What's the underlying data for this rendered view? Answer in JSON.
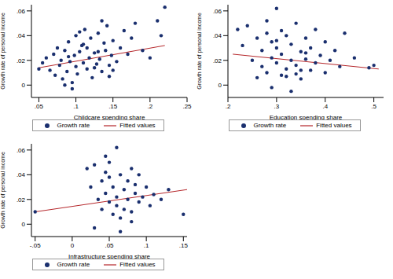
{
  "chart_data": [
    {
      "type": "scatter",
      "x_label": "Childcare spending share",
      "y_label": "Growth rate of personal income",
      "legend": "bottom",
      "xlim": [
        0.04,
        0.25
      ],
      "xticks": [
        {
          "value": 0.05,
          "label": ".05"
        },
        {
          "value": 0.1,
          "label": ".1"
        },
        {
          "value": 0.15,
          "label": ".15"
        },
        {
          "value": 0.2,
          "label": ".2"
        },
        {
          "value": 0.25,
          "label": ".25"
        }
      ],
      "ylim": [
        -0.01,
        0.065
      ],
      "yticks": [
        0,
        {
          "value": 0.02,
          "label": ".02"
        },
        {
          "value": 0.04,
          "label": ".04"
        },
        {
          "value": 0.06,
          "label": ".06"
        }
      ],
      "series": [
        {
          "name": "Growth rate",
          "type": "scatter",
          "marker": "circle",
          "color": "#1a2f6e",
          "x": [
            0.05,
            0.055,
            0.06,
            0.065,
            0.07,
            0.072,
            0.075,
            0.078,
            0.08,
            0.082,
            0.085,
            0.088,
            0.09,
            0.092,
            0.095,
            0.098,
            0.1,
            0.1,
            0.102,
            0.105,
            0.108,
            0.11,
            0.112,
            0.115,
            0.118,
            0.12,
            0.122,
            0.125,
            0.128,
            0.13,
            0.132,
            0.135,
            0.138,
            0.14,
            0.142,
            0.145,
            0.148,
            0.15,
            0.155,
            0.16,
            0.165,
            0.17,
            0.175,
            0.18,
            0.19,
            0.2,
            0.21,
            0.215,
            0.22,
            0.085,
            0.095,
            0.105,
            0.115,
            0.125,
            0.135,
            0.145,
            0.09,
            0.11,
            0.13,
            0.15
          ],
          "values": [
            0.013,
            0.018,
            0.022,
            0.012,
            0.025,
            0.008,
            0.03,
            0.016,
            0.02,
            0.005,
            0.028,
            0.011,
            0.035,
            0.019,
            0.002,
            0.024,
            0.015,
            0.04,
            0.009,
            0.027,
            0.032,
            0.018,
            0.045,
            0.013,
            0.022,
            0.038,
            0.006,
            0.026,
            0.017,
            0.042,
            0.021,
            0.011,
            0.034,
            0.028,
            0.048,
            0.016,
            0.024,
            0.036,
            0.019,
            0.03,
            0.044,
            0.025,
            0.038,
            0.05,
            0.028,
            0.022,
            0.052,
            0.04,
            0.063,
            0.0,
            -0.003,
            0.043,
            0.03,
            0.014,
            0.052,
            0.007,
            0.023,
            0.033,
            0.027,
            0.012
          ]
        },
        {
          "name": "Fitted values",
          "type": "line",
          "line_style": "solid",
          "color": "#b5262a",
          "x": [
            0.05,
            0.22
          ],
          "values": [
            0.014,
            0.032
          ]
        }
      ]
    },
    {
      "type": "scatter",
      "x_label": "Education spending share",
      "y_label": "Growth rate of personal income",
      "legend": "bottom",
      "xlim": [
        0.2,
        0.52
      ],
      "xticks": [
        {
          "value": 0.2,
          "label": ".2"
        },
        {
          "value": 0.3,
          "label": ".3"
        },
        {
          "value": 0.4,
          "label": ".4"
        },
        {
          "value": 0.5,
          "label": ".5"
        }
      ],
      "ylim": [
        -0.01,
        0.065
      ],
      "yticks": [
        0,
        {
          "value": 0.02,
          "label": ".02"
        },
        {
          "value": 0.04,
          "label": ".04"
        },
        {
          "value": 0.06,
          "label": ".06"
        }
      ],
      "series": [
        {
          "name": "Growth rate",
          "type": "scatter",
          "marker": "circle",
          "color": "#1a2f6e",
          "x": [
            0.22,
            0.23,
            0.24,
            0.25,
            0.26,
            0.27,
            0.27,
            0.28,
            0.28,
            0.29,
            0.29,
            0.3,
            0.3,
            0.3,
            0.31,
            0.31,
            0.32,
            0.32,
            0.33,
            0.33,
            0.34,
            0.34,
            0.35,
            0.35,
            0.36,
            0.36,
            0.37,
            0.37,
            0.38,
            0.38,
            0.39,
            0.4,
            0.4,
            0.41,
            0.42,
            0.43,
            0.44,
            0.46,
            0.49,
            0.5,
            0.26,
            0.29,
            0.31,
            0.33,
            0.35,
            0.28,
            0.32,
            0.36,
            0.3,
            0.34
          ],
          "values": [
            0.045,
            0.032,
            0.048,
            0.02,
            0.038,
            0.015,
            0.028,
            0.042,
            0.01,
            0.022,
            0.035,
            0.018,
            0.03,
            0.062,
            0.008,
            0.025,
            0.04,
            0.013,
            0.02,
            0.033,
            0.016,
            0.05,
            0.027,
            0.005,
            0.021,
            0.038,
            0.012,
            0.03,
            0.018,
            0.045,
            0.024,
            0.01,
            0.035,
            0.02,
            0.028,
            0.015,
            0.042,
            0.022,
            0.014,
            0.016,
            0.006,
            -0.002,
            0.044,
            -0.005,
            0.012,
            0.052,
            0.007,
            0.026,
            0.036,
            0.009
          ]
        },
        {
          "name": "Fitted values",
          "type": "line",
          "line_style": "solid",
          "color": "#b5262a",
          "x": [
            0.21,
            0.51
          ],
          "values": [
            0.025,
            0.013
          ]
        }
      ]
    },
    {
      "type": "scatter",
      "x_label": "Infrastructure spending share",
      "y_label": "Growth rate of personal income",
      "legend": "bottom",
      "xlim": [
        -0.055,
        0.155
      ],
      "xticks": [
        {
          "value": -0.05,
          "label": "-.05"
        },
        0,
        {
          "value": 0.05,
          "label": ".05"
        },
        {
          "value": 0.1,
          "label": ".1"
        },
        {
          "value": 0.15,
          "label": ".15"
        }
      ],
      "ylim": [
        -0.01,
        0.065
      ],
      "yticks": [
        0,
        {
          "value": 0.02,
          "label": ".02"
        },
        {
          "value": 0.04,
          "label": ".04"
        },
        {
          "value": 0.06,
          "label": ".06"
        }
      ],
      "series": [
        {
          "name": "Growth rate",
          "type": "scatter",
          "marker": "circle",
          "color": "#1a2f6e",
          "x": [
            -0.05,
            0.02,
            0.025,
            0.03,
            0.035,
            0.04,
            0.04,
            0.045,
            0.045,
            0.05,
            0.05,
            0.055,
            0.055,
            0.06,
            0.06,
            0.06,
            0.065,
            0.065,
            0.07,
            0.07,
            0.075,
            0.075,
            0.08,
            0.08,
            0.085,
            0.085,
            0.09,
            0.09,
            0.095,
            0.1,
            0.105,
            0.11,
            0.12,
            0.13,
            0.15,
            0.03,
            0.05,
            0.065,
            0.08,
            0.045
          ],
          "values": [
            0.01,
            0.045,
            0.03,
            0.048,
            0.02,
            0.035,
            0.012,
            0.042,
            0.025,
            0.018,
            0.038,
            0.008,
            0.03,
            0.015,
            0.022,
            0.062,
            0.04,
            0.005,
            0.028,
            0.012,
            0.035,
            0.02,
            0.045,
            0.01,
            0.025,
            0.032,
            0.018,
            0.04,
            0.022,
            0.03,
            0.015,
            0.024,
            0.02,
            0.028,
            0.008,
            -0.003,
            0.05,
            -0.006,
            0.002,
            0.055
          ]
        },
        {
          "name": "Fitted values",
          "type": "line",
          "line_style": "solid",
          "color": "#b5262a",
          "x": [
            -0.05,
            0.155
          ],
          "values": [
            0.01,
            0.028
          ]
        }
      ]
    }
  ]
}
